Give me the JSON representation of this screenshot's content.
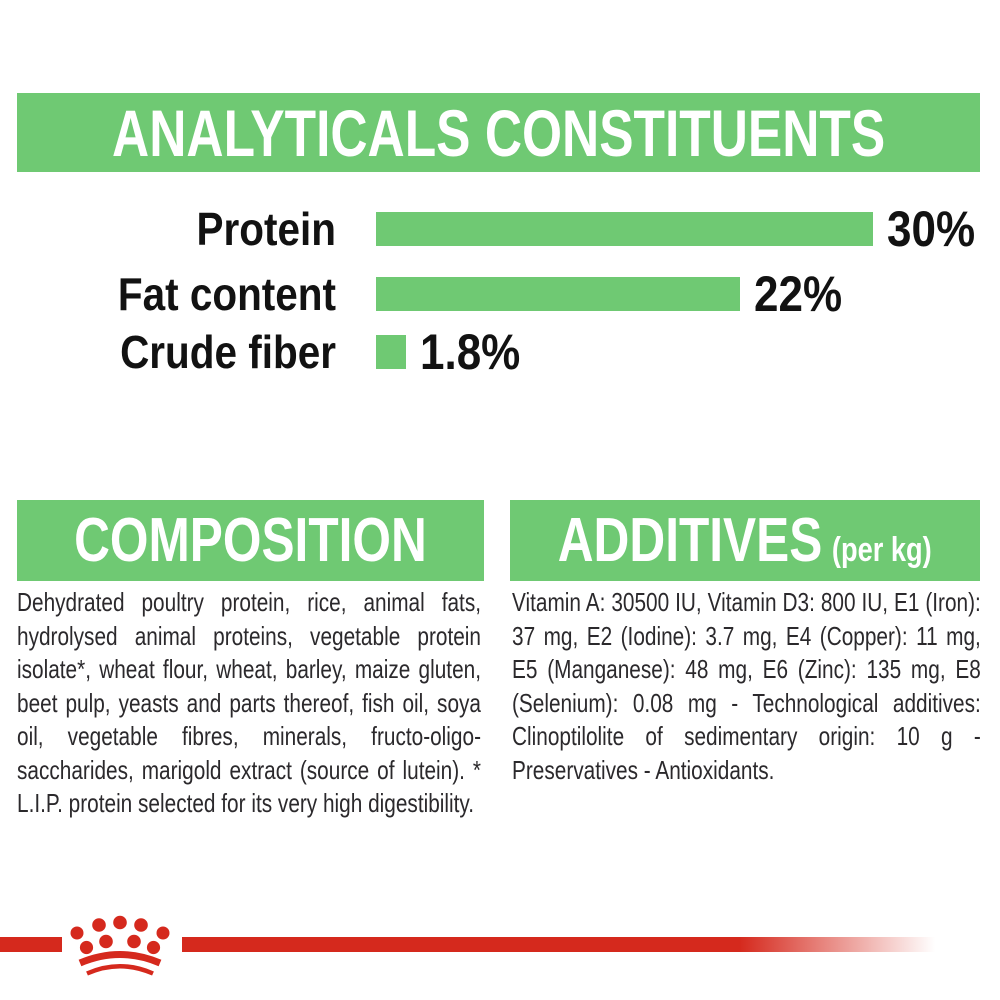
{
  "colors": {
    "green": "#6fc973",
    "red": "#d5291d",
    "ink": "#2b292c",
    "label": "#121212"
  },
  "analyticals": {
    "title": "ANALYTICALS CONSTITUENTS"
  },
  "chart_data": {
    "type": "bar",
    "orientation": "horizontal",
    "title": "ANALYTICALS CONSTITUENTS",
    "categories": [
      "Protein",
      "Fat content",
      "Crude fiber"
    ],
    "values": [
      30,
      22,
      1.8
    ],
    "value_labels": [
      "30%",
      "22%",
      "1.8%"
    ],
    "unit": "%",
    "xlim": [
      0,
      30
    ],
    "bar_color": "#6fc973",
    "grid": false,
    "legend": false
  },
  "composition": {
    "title": "COMPOSITION",
    "body": "Dehydrated poultry protein, rice, animal fats, hydrolysed animal proteins, vegetable protein isolate*, wheat flour, wheat, barley, maize gluten, beet pulp, yeasts and parts thereof, fish oil, soya oil, vegetable fibres, minerals, fructo-oligo-saccharides, marigold extract (source of lutein). * L.I.P. protein selected for its very high digestibility."
  },
  "additives": {
    "title": "ADDITIVES",
    "suffix": "(per kg)",
    "body": "Vitamin A: 30500 IU, Vitamin D3: 800 IU, E1 (Iron): 37 mg, E2 (Iodine): 3.7 mg, E4 (Copper): 11 mg, E5 (Manganese): 48 mg, E6 (Zinc): 135 mg, E8 (Selenium): 0.08 mg - Technological additives: Clinoptilolite of sedimentary origin: 10 g - Preservatives - Antioxidants."
  },
  "footer": {
    "logo": "Royal Canin crown emblem"
  }
}
